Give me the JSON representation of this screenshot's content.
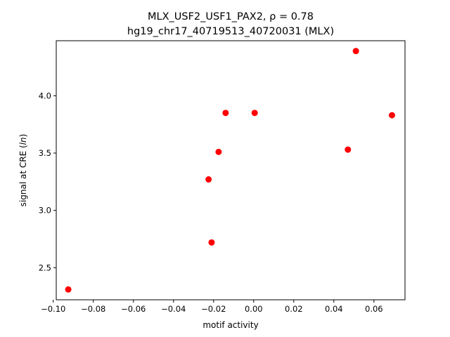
{
  "chart_data": {
    "type": "scatter",
    "title": "MLX_USF2_USF1_PAX2, ρ = 0.78",
    "subtitle": "hg19_chr17_40719513_40720031 (MLX)",
    "xlabel": "motif activity",
    "ylabel_prefix": "signal at CRE (",
    "ylabel_italic": "ln",
    "ylabel_suffix": ")",
    "xlim": [
      -0.0985,
      0.0755
    ],
    "ylim": [
      2.22,
      4.48
    ],
    "x_ticks": [
      -0.1,
      -0.08,
      -0.06,
      -0.04,
      -0.02,
      0.0,
      0.02,
      0.04,
      0.06
    ],
    "x_tick_labels": [
      "−0.10",
      "−0.08",
      "−0.06",
      "−0.04",
      "−0.02",
      "0.00",
      "0.02",
      "0.04",
      "0.06"
    ],
    "y_ticks": [
      2.5,
      3.0,
      3.5,
      4.0
    ],
    "y_tick_labels": [
      "2.5",
      "3.0",
      "3.5",
      "4.0"
    ],
    "grid": false,
    "marker_color": "#ff0000",
    "points": [
      {
        "x": -0.0925,
        "y": 2.31
      },
      {
        "x": -0.021,
        "y": 2.72
      },
      {
        "x": -0.0225,
        "y": 3.27
      },
      {
        "x": -0.0175,
        "y": 3.51
      },
      {
        "x": -0.014,
        "y": 3.85
      },
      {
        "x": 0.0005,
        "y": 3.85
      },
      {
        "x": 0.047,
        "y": 3.53
      },
      {
        "x": 0.051,
        "y": 4.39
      },
      {
        "x": 0.069,
        "y": 3.83
      }
    ]
  }
}
